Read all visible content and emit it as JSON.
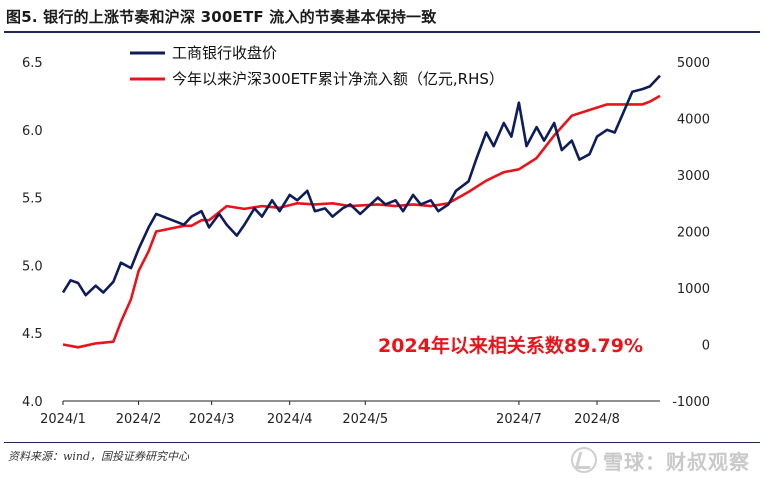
{
  "header": {
    "title": "图5. 银行的上涨节奏和沪深 300ETF 流入的节奏基本保持一致"
  },
  "footer": {
    "source": "资料来源：wind，国投证券研究中心",
    "watermark": "雪球：财叔观察"
  },
  "chart_data": {
    "type": "line",
    "x_type": "date",
    "x_ticks": [
      "2024/1",
      "2024/2",
      "2024/3",
      "2024/4",
      "2024/5",
      "2024/7",
      "2024/8"
    ],
    "ylim_left": [
      4.0,
      6.5
    ],
    "y_ticks_left": [
      "4.0",
      "4.5",
      "5.0",
      "5.5",
      "6.0",
      "6.5"
    ],
    "ylim_right": [
      -1000,
      5000
    ],
    "y_ticks_right": [
      "-1000",
      "0",
      "1000",
      "2000",
      "3000",
      "4000",
      "5000"
    ],
    "legend_position": "top-left",
    "annotation": "2024年以来相关系数89.79%",
    "colors": {
      "bank": "#0e1d5a",
      "etf": "#e8141b"
    },
    "series": [
      {
        "name": "工商银行收盘价",
        "axis": "left",
        "x": [
          "2024-01-02",
          "2024-01-05",
          "2024-01-08",
          "2024-01-11",
          "2024-01-15",
          "2024-01-18",
          "2024-01-22",
          "2024-01-25",
          "2024-01-29",
          "2024-02-01",
          "2024-02-05",
          "2024-02-08",
          "2024-02-19",
          "2024-02-22",
          "2024-02-26",
          "2024-02-29",
          "2024-03-04",
          "2024-03-07",
          "2024-03-11",
          "2024-03-14",
          "2024-03-18",
          "2024-03-21",
          "2024-03-25",
          "2024-03-28",
          "2024-04-01",
          "2024-04-04",
          "2024-04-08",
          "2024-04-11",
          "2024-04-15",
          "2024-04-18",
          "2024-04-22",
          "2024-04-25",
          "2024-04-29",
          "2024-05-06",
          "2024-05-09",
          "2024-05-13",
          "2024-05-16",
          "2024-05-20",
          "2024-05-23",
          "2024-05-27",
          "2024-05-30",
          "2024-06-03",
          "2024-06-06",
          "2024-06-11",
          "2024-06-14",
          "2024-06-18",
          "2024-06-21",
          "2024-06-25",
          "2024-06-28",
          "2024-07-01",
          "2024-07-04",
          "2024-07-08",
          "2024-07-11",
          "2024-07-15",
          "2024-07-18",
          "2024-07-22",
          "2024-07-25",
          "2024-07-29",
          "2024-08-01",
          "2024-08-05",
          "2024-08-08",
          "2024-08-12",
          "2024-08-15",
          "2024-08-19",
          "2024-08-22",
          "2024-08-26"
        ],
        "y": [
          4.8,
          4.89,
          4.87,
          4.78,
          4.85,
          4.8,
          4.88,
          5.02,
          4.98,
          5.12,
          5.28,
          5.38,
          5.3,
          5.36,
          5.4,
          5.28,
          5.38,
          5.3,
          5.22,
          5.3,
          5.42,
          5.36,
          5.48,
          5.4,
          5.52,
          5.48,
          5.55,
          5.4,
          5.42,
          5.36,
          5.42,
          5.45,
          5.38,
          5.5,
          5.45,
          5.48,
          5.4,
          5.52,
          5.45,
          5.48,
          5.4,
          5.45,
          5.55,
          5.62,
          5.78,
          5.98,
          5.88,
          6.05,
          5.95,
          6.2,
          5.88,
          6.02,
          5.92,
          6.05,
          5.85,
          5.92,
          5.78,
          5.82,
          5.95,
          6.0,
          5.98,
          6.15,
          6.28,
          6.3,
          6.32,
          6.4
        ]
      },
      {
        "name": "今年以来沪深300ETF累计净流入额（亿元,RHS）",
        "axis": "right",
        "x": [
          "2024-01-02",
          "2024-01-08",
          "2024-01-15",
          "2024-01-22",
          "2024-01-25",
          "2024-01-29",
          "2024-02-01",
          "2024-02-05",
          "2024-02-08",
          "2024-02-19",
          "2024-02-22",
          "2024-02-26",
          "2024-02-29",
          "2024-03-07",
          "2024-03-14",
          "2024-03-21",
          "2024-03-28",
          "2024-04-04",
          "2024-04-11",
          "2024-04-18",
          "2024-04-25",
          "2024-05-06",
          "2024-05-13",
          "2024-05-20",
          "2024-05-27",
          "2024-06-03",
          "2024-06-11",
          "2024-06-18",
          "2024-06-25",
          "2024-07-01",
          "2024-07-08",
          "2024-07-15",
          "2024-07-22",
          "2024-07-29",
          "2024-08-05",
          "2024-08-12",
          "2024-08-19",
          "2024-08-22",
          "2024-08-26"
        ],
        "y": [
          0,
          -50,
          20,
          50,
          400,
          800,
          1300,
          1650,
          2000,
          2100,
          2100,
          2200,
          2200,
          2450,
          2400,
          2450,
          2420,
          2500,
          2480,
          2500,
          2450,
          2480,
          2450,
          2480,
          2450,
          2500,
          2700,
          2900,
          3050,
          3100,
          3300,
          3700,
          4050,
          4150,
          4250,
          4250,
          4250,
          4300,
          4400
        ]
      }
    ]
  }
}
